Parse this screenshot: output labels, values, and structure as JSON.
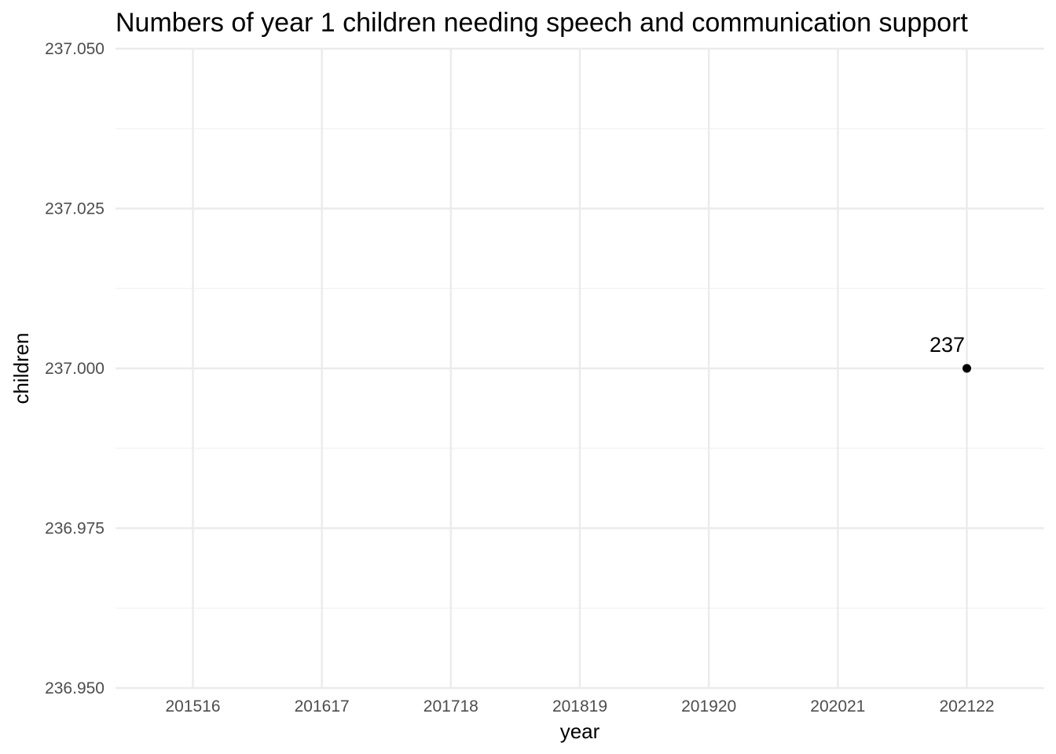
{
  "chart_data": {
    "type": "scatter",
    "title": "Numbers of year 1 children needing speech and communication support",
    "xlabel": "year",
    "ylabel": "children",
    "categories": [
      "201516",
      "201617",
      "201718",
      "201819",
      "201920",
      "202021",
      "202122"
    ],
    "ylim": [
      236.95,
      237.05
    ],
    "yticks": [
      "236.950",
      "236.975",
      "237.000",
      "237.025",
      "237.050"
    ],
    "grid": true,
    "series": [
      {
        "points": [
          {
            "x": "202122",
            "y": 237,
            "label": "237"
          }
        ]
      }
    ],
    "colors": {
      "point": "#000000",
      "grid_major": "#ebebeb",
      "grid_minor": "#f2f2f2",
      "tick_text": "#4d4d4d"
    }
  }
}
